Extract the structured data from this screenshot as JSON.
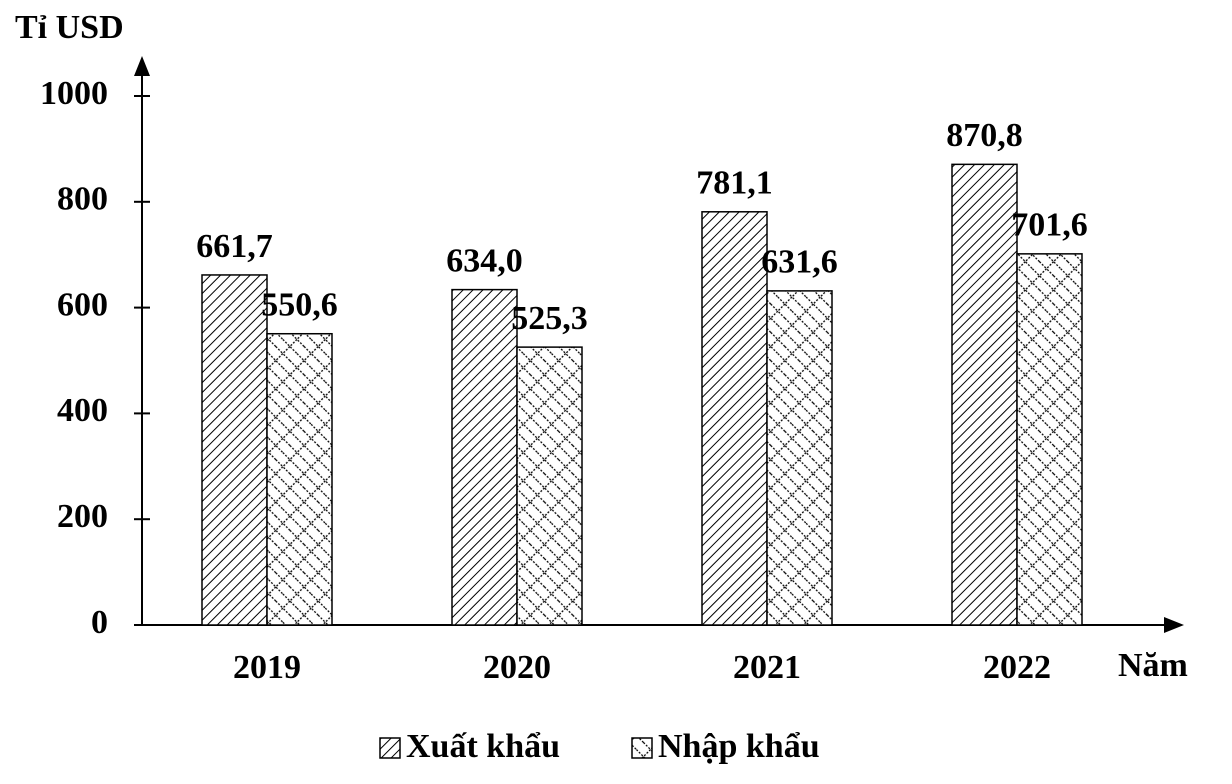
{
  "chart_data": {
    "type": "bar",
    "y_label": "Tỉ USD",
    "x_label": "Năm",
    "categories": [
      "2019",
      "2020",
      "2021",
      "2022"
    ],
    "series": [
      {
        "name": "Xuất khẩu",
        "color": "#000000",
        "pattern": "diagonal",
        "values": [
          661.7,
          634.0,
          781.1,
          870.8
        ],
        "value_labels": [
          "661,7",
          "634,0",
          "781,1",
          "870,8"
        ]
      },
      {
        "name": "Nhập khẩu",
        "color": "#000000",
        "pattern": "crosshatch",
        "values": [
          550.6,
          525.3,
          631.6,
          701.6
        ],
        "value_labels": [
          "550,6",
          "525,3",
          "631,6",
          "701,6"
        ]
      }
    ],
    "ylim": [
      0,
      1000
    ],
    "yticks": [
      0,
      200,
      400,
      600,
      800,
      1000
    ],
    "grid": false,
    "legend": "bottom"
  }
}
